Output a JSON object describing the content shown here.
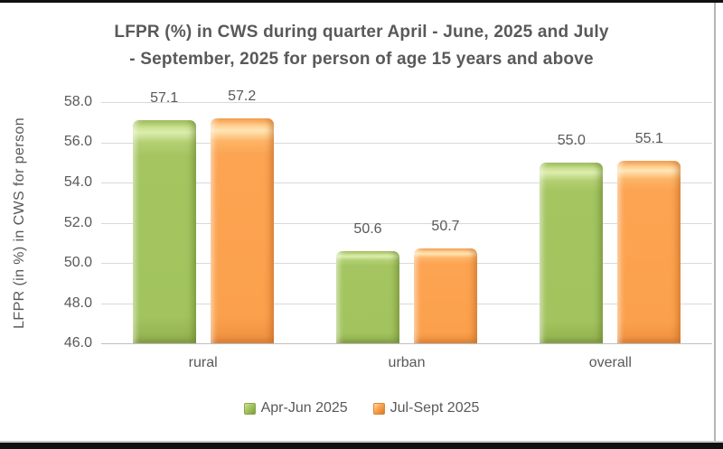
{
  "chart_data": {
    "type": "bar",
    "title_lines": [
      "LFPR (%) in CWS during quarter April - June, 2025 and July",
      "- September, 2025 for person of age 15 years and above"
    ],
    "title": "LFPR (%) in CWS during quarter April - June, 2025 and July - September, 2025 for person of age 15 years and above",
    "ylabel": "LFPR (in %) in CWS for person",
    "xlabel": "",
    "categories": [
      "rural",
      "urban",
      "overall"
    ],
    "series": [
      {
        "name": "Apr-Jun 2025",
        "color": "#a3c45f",
        "values": [
          57.1,
          50.6,
          55.0
        ]
      },
      {
        "name": "Jul-Sept 2025",
        "color": "#fba04c",
        "values": [
          57.2,
          50.7,
          55.1
        ]
      }
    ],
    "ylim": [
      46,
      58
    ],
    "yticks": [
      58,
      56,
      54,
      52,
      50,
      48,
      46
    ],
    "ytick_format_decimals": 1,
    "grid": true,
    "legend_position": "bottom",
    "value_labels": true
  },
  "colors": {
    "text": "#595959",
    "gridline": "#d9d9d9",
    "axis_line": "#bfbfbf",
    "series_green": "#a3c45f",
    "series_orange": "#fba04c",
    "frame_black": "#101010"
  }
}
